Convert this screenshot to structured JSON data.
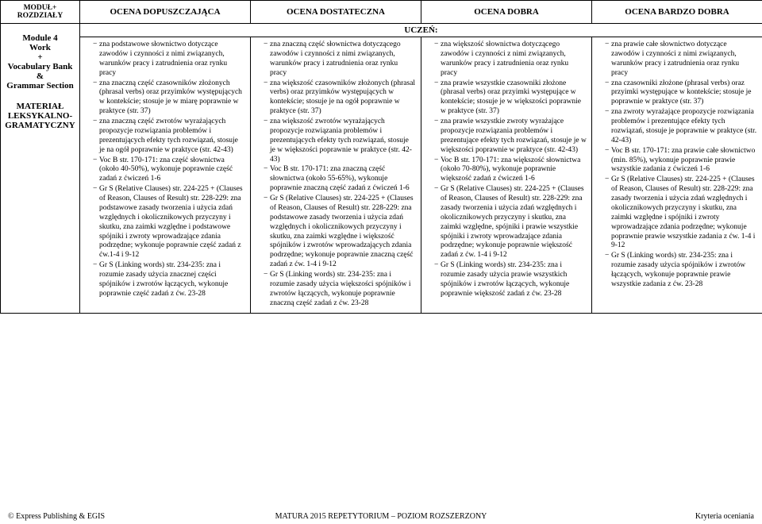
{
  "headers": {
    "rowcol": "MODUŁ+\nROZDZIAŁY",
    "grade1": "OCENA DOPUSZCZAJĄCA",
    "grade2": "OCENA DOSTATECZNA",
    "grade3": "OCENA DOBRA",
    "grade4": "OCENA BARDZO DOBRA",
    "uczen": "UCZEŃ:"
  },
  "left": {
    "module": "Module 4\nWork\n+\nVocabulary Bank\n&\nGrammar Section",
    "material": "MATERIAŁ\nLEKSYKALNO-\nGRAMATYCZNY"
  },
  "col1": [
    "zna podstawowe słownictwo dotyczące zawodów i czynności z nimi związanych, warunków pracy i zatrudnienia oraz rynku pracy",
    "zna znaczną część czasowników złożonych (phrasal verbs) oraz przyimków występujących w kontekście; stosuje je w miarę poprawnie w praktyce (str. 37)",
    "zna znaczną część zwrotów wyrażających propozycje rozwiązania problemów i prezentujących efekty tych rozwiązań, stosuje je na ogół poprawnie w praktyce (str. 42-43)",
    "Voc B str. 170-171: zna część słownictwa (około 40-50%), wykonuje poprawnie część zadań z ćwiczeń 1-6",
    "Gr S (Relative Clauses) str. 224-225 + (Clauses of Reason, Clauses of Result) str. 228-229: zna podstawowe zasady tworzenia i użycia zdań względnych i okolicznikowych przyczyny i skutku, zna zaimki względne i podstawowe spójniki i zwroty wprowadzające zdania podrzędne; wykonuje poprawnie część zadań z ćw.1-4 i 9-12",
    "Gr S (Linking words) str. 234-235: zna i rozumie zasady użycia znacznej części spójników i zwrotów łączących, wykonuje poprawnie część zadań z ćw. 23-28"
  ],
  "col2": [
    "zna znaczną część słownictwa dotyczącego zawodów i czynności z nimi związanych, warunków pracy i zatrudnienia oraz rynku pracy",
    "zna większość czasowników złożonych (phrasal verbs) oraz przyimków występujących w kontekście; stosuje je na ogół poprawnie w praktyce (str. 37)",
    "zna większość zwrotów wyrażających propozycje rozwiązania problemów i prezentujących efekty tych rozwiązań, stosuje je w większości poprawnie w praktyce (str. 42-43)",
    "Voc B str. 170-171: zna znaczną część słownictwa (około 55-65%), wykonuje poprawnie znaczną część zadań z ćwiczeń 1-6",
    "Gr S (Relative Clauses) str. 224-225 + (Clauses of Reason, Clauses of Result) str. 228-229: zna podstawowe zasady tworzenia i użycia zdań względnych i okolicznikowych przyczyny i skutku, zna zaimki względne i większość spójników i zwrotów wprowadzających zdania podrzędne; wykonuje poprawnie znaczną część zadań z ćw. 1-4 i 9-12",
    "Gr S (Linking words) str. 234-235: zna i rozumie zasady użycia większości spójników i zwrotów łączących, wykonuje poprawnie znaczną część zadań z ćw. 23-28"
  ],
  "col3": [
    "zna większość słownictwa dotyczącego zawodów i czynności z nimi związanych, warunków pracy i zatrudnienia oraz rynku pracy",
    "zna prawie wszystkie czasowniki złożone (phrasal verbs) oraz przyimki występujące w kontekście; stosuje je w większości poprawnie w praktyce (str. 37)",
    "zna prawie wszystkie zwroty wyrażające propozycje rozwiązania problemów i prezentujące efekty tych rozwiązań, stosuje je w większości poprawnie w praktyce (str. 42-43)",
    "Voc B str. 170-171: zna większość słownictwa (około 70-80%), wykonuje poprawnie większość zadań z ćwiczeń 1-6",
    "Gr S (Relative Clauses) str. 224-225 + (Clauses of Reason, Clauses of Result) str. 228-229: zna zasady tworzenia i użycia zdań względnych i okolicznikowych przyczyny i skutku, zna zaimki względne, spójniki i prawie wszystkie spójniki i zwroty wprowadzające zdania podrzędne; wykonuje poprawnie większość zadań z ćw. 1-4 i 9-12",
    "Gr S (Linking words) str. 234-235: zna i rozumie zasady użycia prawie wszystkich spójników i zwrotów łączących, wykonuje poprawnie większość zadań z ćw. 23-28"
  ],
  "col4": [
    "zna prawie całe słownictwo dotyczące zawodów i czynności z nimi związanych, warunków pracy i zatrudnienia oraz rynku pracy",
    "zna czasowniki złożone (phrasal verbs) oraz przyimki występujące w kontekście; stosuje je poprawnie w praktyce (str. 37)",
    "zna zwroty wyrażające propozycje rozwiązania problemów i prezentujące efekty tych rozwiązań, stosuje je poprawnie w praktyce (str. 42-43)",
    "Voc B str. 170-171: zna prawie całe słownictwo (min. 85%), wykonuje poprawnie prawie wszystkie zadania z ćwiczeń 1-6",
    "Gr S (Relative Clauses) str. 224-225 + (Clauses of Reason, Clauses of Result) str. 228-229: zna zasady tworzenia i użycia zdań względnych i okolicznikowych przyczyny i skutku, zna zaimki względne i spójniki i zwroty wprowadzające zdania podrzędne; wykonuje poprawnie prawie wszystkie zadania z ćw. 1-4 i 9-12",
    "Gr S (Linking words) str. 234-235: zna i rozumie zasady użycia spójników i zwrotów łączących, wykonuje poprawnie prawie wszystkie zadania z ćw. 23-28"
  ],
  "footer": {
    "left": "© Express Publishing & EGIS",
    "center": "MATURA 2015 REPETYTORIUM – POZIOM ROZSZERZONY",
    "right": "Kryteria oceniania"
  }
}
